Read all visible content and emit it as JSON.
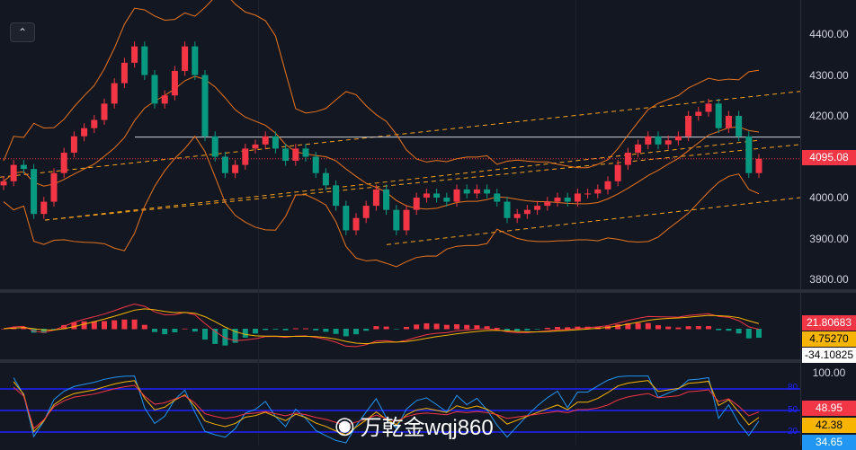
{
  "chart_data": {
    "type": "candlestick",
    "price_axis": {
      "ticks": [
        "4400.00",
        "4300.00",
        "4200.00",
        "4100.00",
        "4000.00",
        "3900.00",
        "3800.00"
      ],
      "ylim": [
        3780,
        4450
      ]
    },
    "closes": [
      4040,
      4080,
      4070,
      3960,
      3990,
      4060,
      4110,
      4150,
      4170,
      4190,
      4230,
      4280,
      4330,
      4370,
      4300,
      4230,
      4250,
      4310,
      4370,
      4300,
      4150,
      4100,
      4060,
      4080,
      4120,
      4130,
      4150,
      4120,
      4090,
      4120,
      4100,
      4060,
      4030,
      3980,
      3920,
      3950,
      3980,
      4020,
      3970,
      3920,
      3970,
      4000,
      4010,
      4000,
      3990,
      4020,
      4010,
      4020,
      4010,
      3990,
      3950,
      3960,
      3970,
      3980,
      3990,
      4000,
      3990,
      4010,
      4010,
      4020,
      4040,
      4080,
      4110,
      4130,
      4150,
      4130,
      4140,
      4150,
      4200,
      4210,
      4230,
      4170,
      4200,
      4150,
      4060,
      4095
    ],
    "last_price": "4095.08",
    "horizontal_level": 4148,
    "macd": {
      "values": [
        "21.80683",
        "4.75270",
        "-34.10825"
      ],
      "colors": [
        "#f23645",
        "#f7b500",
        "#ffffff"
      ]
    },
    "rsi": {
      "axis": "100.00",
      "values": [
        "48.95",
        "42.38",
        "34.65"
      ],
      "colors": [
        "#f23645",
        "#f7b500",
        "#2196f3"
      ],
      "levels": [
        "80",
        "50",
        "20"
      ]
    },
    "colors": {
      "up": "#f23645",
      "down": "#089981",
      "band": "#e8741e",
      "channel": "#f7a21b"
    }
  },
  "ui": {
    "collapse_icon": "chevron-up-icon",
    "watermark": "万乾金wqj860"
  }
}
